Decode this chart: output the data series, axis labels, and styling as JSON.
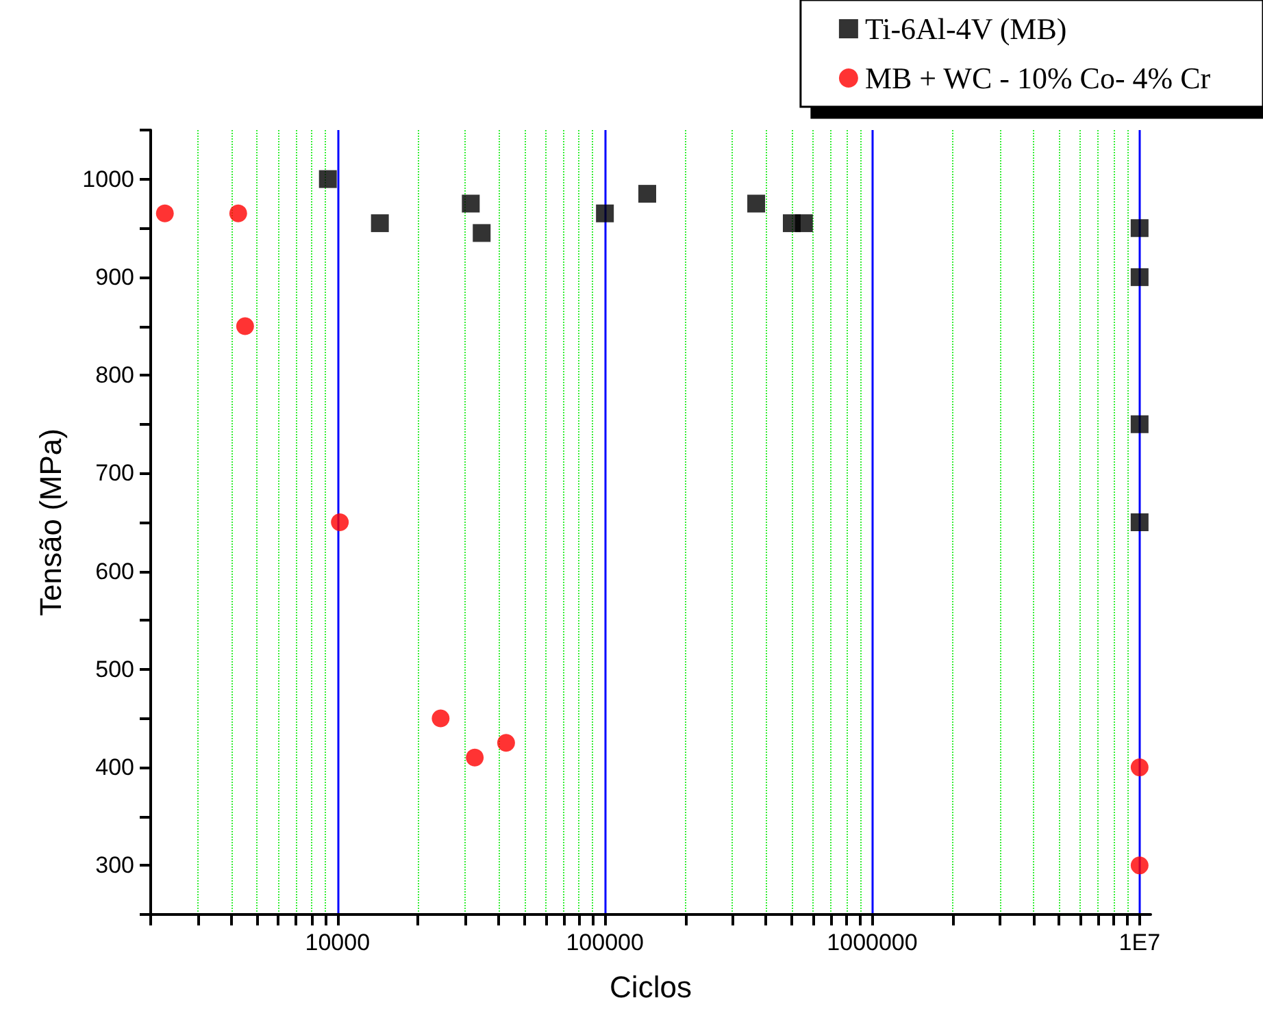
{
  "chart_data": {
    "type": "scatter",
    "xlabel": "Ciclos",
    "ylabel": "Tensão (MPa)",
    "log": "x",
    "grid": "x",
    "legend": "top right",
    "xlim": [
      2000,
      11000000
    ],
    "ylim": [
      250,
      1050
    ],
    "xticks": [
      {
        "value": 2000,
        "label": null
      },
      {
        "value": 3000,
        "label": null
      },
      {
        "value": 4000,
        "label": null
      },
      {
        "value": 5000,
        "label": null
      },
      {
        "value": 6000,
        "label": null
      },
      {
        "value": 7000,
        "label": null
      },
      {
        "value": 8000,
        "label": null
      },
      {
        "value": 9000,
        "label": null
      },
      10000,
      {
        "value": 20000,
        "label": null
      },
      {
        "value": 30000,
        "label": null
      },
      {
        "value": 40000,
        "label": null
      },
      {
        "value": 50000,
        "label": null
      },
      {
        "value": 60000,
        "label": null
      },
      {
        "value": 70000,
        "label": null
      },
      {
        "value": 80000,
        "label": null
      },
      {
        "value": 90000,
        "label": null
      },
      100000,
      {
        "value": 200000,
        "label": null
      },
      {
        "value": 300000,
        "label": null
      },
      {
        "value": 400000,
        "label": null
      },
      {
        "value": 500000,
        "label": null
      },
      {
        "value": 600000,
        "label": null
      },
      {
        "value": 700000,
        "label": null
      },
      {
        "value": 800000,
        "label": null
      },
      {
        "value": 900000,
        "label": null
      },
      1000000,
      {
        "value": 2000000,
        "label": null
      },
      {
        "value": 3000000,
        "label": null
      },
      {
        "value": 4000000,
        "label": null
      },
      {
        "value": 5000000,
        "label": null
      },
      {
        "value": 6000000,
        "label": null
      },
      {
        "value": 7000000,
        "label": null
      },
      {
        "value": 8000000,
        "label": null
      },
      {
        "value": 9000000,
        "label": null
      },
      {
        "value": 10000000,
        "label": "1E7"
      }
    ],
    "yticks": [
      {
        "value": 250,
        "label": null
      },
      300,
      {
        "value": 350,
        "label": null
      },
      400,
      {
        "value": 450,
        "label": null
      },
      500,
      {
        "value": 550,
        "label": null
      },
      600,
      {
        "value": 650,
        "label": null
      },
      700,
      {
        "value": 750,
        "label": null
      },
      800,
      {
        "value": 850,
        "label": null
      },
      900,
      {
        "value": 950,
        "label": null
      },
      1000,
      {
        "value": 1050,
        "label": null
      }
    ],
    "series": [
      {
        "name": "Ti-6Al-4V (MB)",
        "color": "#000000",
        "marker": "square",
        "x": [
          9200,
          14400,
          31500,
          34600,
          100000,
          144000,
          368000,
          500000,
          555000,
          10000000,
          10000000,
          10000000,
          10000000
        ],
        "values": [
          1000,
          955,
          975,
          945,
          965,
          985,
          975,
          955,
          955,
          950,
          900,
          750,
          650
        ]
      },
      {
        "name": "MB + WC - 10% Co- 4% Cr",
        "color": "#ff0000",
        "marker": "circle",
        "x": [
          2260,
          4250,
          4510,
          10200,
          24300,
          32600,
          42700,
          10000000,
          10000000
        ],
        "values": [
          965,
          965,
          850,
          650,
          450,
          410,
          425,
          400,
          300
        ]
      }
    ]
  }
}
